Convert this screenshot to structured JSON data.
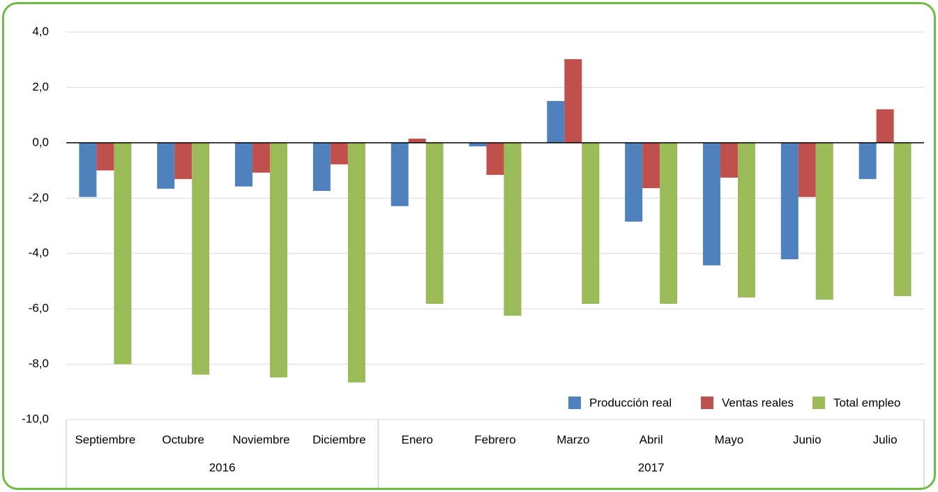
{
  "chart_data": {
    "type": "bar",
    "categories": [
      "Septiembre",
      "Octubre",
      "Noviembre",
      "Diciembre",
      "Enero",
      "Febrero",
      "Marzo",
      "Abril",
      "Mayo",
      "Junio",
      "Julio"
    ],
    "x_groups": [
      {
        "label": "2016",
        "count": 4
      },
      {
        "label": "2017",
        "count": 7
      }
    ],
    "series": [
      {
        "name": "Producción real",
        "color": "#4f81bd",
        "values": [
          -1.96,
          -1.66,
          -1.58,
          -1.74,
          -2.29,
          -0.13,
          1.51,
          -2.85,
          -4.43,
          -4.21,
          -1.31
        ]
      },
      {
        "name": "Ventas reales",
        "color": "#c0504d",
        "values": [
          -1.0,
          -1.31,
          -1.08,
          -0.78,
          0.15,
          -1.16,
          3.02,
          -1.64,
          -1.26,
          -1.96,
          1.21
        ]
      },
      {
        "name": "Total empleo",
        "color": "#9bbb59",
        "values": [
          -8.0,
          -8.38,
          -8.48,
          -8.66,
          -5.82,
          -6.25,
          -5.82,
          -5.82,
          -5.59,
          -5.67,
          -5.54
        ]
      }
    ],
    "ylim": [
      -10,
      4
    ],
    "yticks": [
      {
        "value": -10,
        "label": "-10,0"
      },
      {
        "value": -8,
        "label": "-8,0"
      },
      {
        "value": -6,
        "label": "-6,0"
      },
      {
        "value": -4,
        "label": "-4,0"
      },
      {
        "value": -2,
        "label": "-2,0"
      },
      {
        "value": 0,
        "label": "0,0"
      },
      {
        "value": 2,
        "label": "2,0"
      },
      {
        "value": 4,
        "label": "4,0"
      }
    ],
    "grid": true,
    "legend": "lower right"
  }
}
